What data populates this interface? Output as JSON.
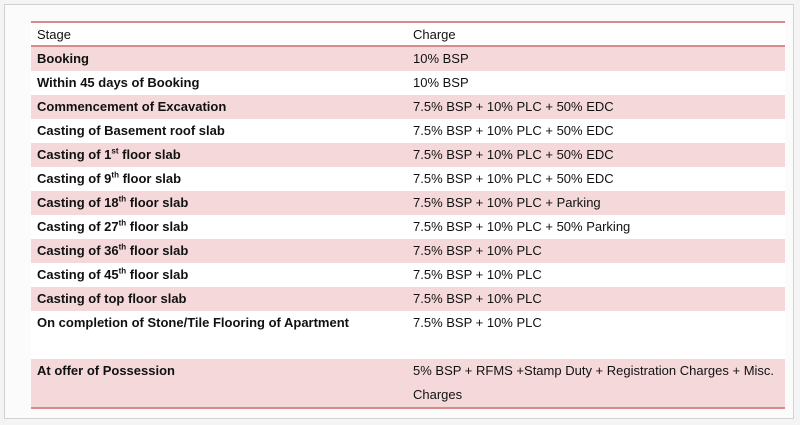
{
  "table": {
    "headers": {
      "stage": "Stage",
      "charge": "Charge"
    },
    "rows": [
      {
        "stage": "Booking",
        "sup": "",
        "stage_suffix": "",
        "charge": "10% BSP"
      },
      {
        "stage": "Within 45 days of Booking",
        "sup": "",
        "stage_suffix": "",
        "charge": "10% BSP"
      },
      {
        "stage": "Commencement of Excavation",
        "sup": "",
        "stage_suffix": "",
        "charge": "7.5% BSP + 10% PLC + 50% EDC"
      },
      {
        "stage": "Casting of Basement roof slab",
        "sup": "",
        "stage_suffix": "",
        "charge": "7.5% BSP + 10% PLC + 50% EDC"
      },
      {
        "stage": "Casting of 1",
        "sup": "st",
        "stage_suffix": " floor slab",
        "charge": "7.5% BSP + 10% PLC + 50% EDC"
      },
      {
        "stage": "Casting of 9",
        "sup": "th",
        "stage_suffix": " floor slab",
        "charge": "7.5% BSP + 10% PLC + 50% EDC"
      },
      {
        "stage": "Casting of 18",
        "sup": "th",
        "stage_suffix": " floor slab",
        "charge": "7.5% BSP + 10% PLC + Parking"
      },
      {
        "stage": "Casting of 27",
        "sup": "th",
        "stage_suffix": " floor slab",
        "charge": "7.5% BSP + 10% PLC + 50% Parking"
      },
      {
        "stage": "Casting of 36",
        "sup": "th",
        "stage_suffix": " floor slab",
        "charge": "7.5% BSP + 10% PLC"
      },
      {
        "stage": "Casting of 45",
        "sup": "th",
        "stage_suffix": " floor slab",
        "charge": "7.5% BSP + 10% PLC"
      },
      {
        "stage": "Casting of top floor slab",
        "sup": "",
        "stage_suffix": "",
        "charge": "7.5% BSP + 10% PLC"
      },
      {
        "stage": "On completion of Stone/Tile Flooring of Apartment",
        "sup": "",
        "stage_suffix": "",
        "charge": "7.5% BSP + 10% PLC"
      },
      {
        "stage": "At offer of Possession",
        "sup": "",
        "stage_suffix": "",
        "charge": "5% BSP + RFMS +Stamp Duty + Registration Charges + Misc. Charges"
      }
    ]
  },
  "colors": {
    "shade": "#f5d9da",
    "rule": "#d98a8a"
  }
}
